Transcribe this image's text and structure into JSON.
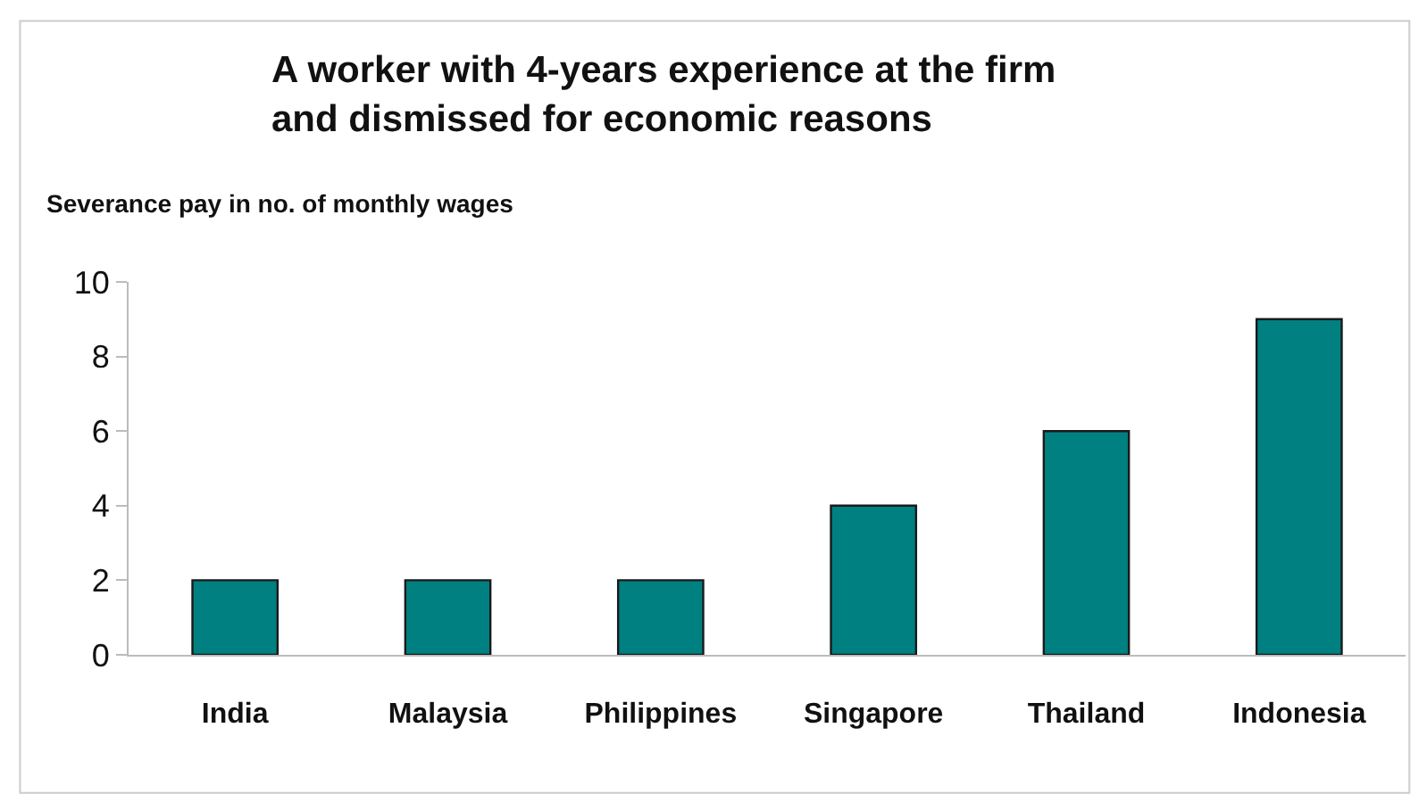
{
  "chart_data": {
    "type": "bar",
    "title": "A worker with 4-years experience at the firm\nand dismissed for economic reasons",
    "ylabel": "Severance pay in no. of monthly wages",
    "categories": [
      "India",
      "Malaysia",
      "Philippines",
      "Singapore",
      "Thailand",
      "Indonesia"
    ],
    "values": [
      2,
      2,
      2,
      4,
      6,
      9
    ],
    "color": "#008080",
    "ylim": [
      0,
      10
    ],
    "yticks": [
      0,
      2,
      4,
      6,
      8,
      10
    ]
  }
}
